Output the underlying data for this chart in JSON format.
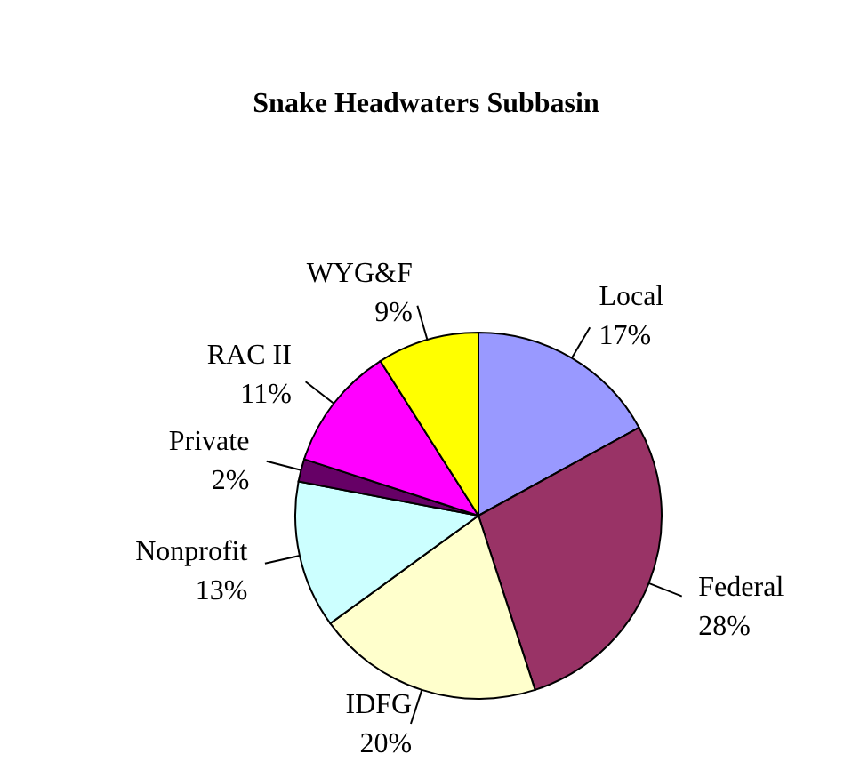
{
  "chart_data": {
    "type": "pie",
    "title": "Snake Headwaters Subbasin",
    "categories": [
      "Local",
      "Federal",
      "IDFG",
      "Nonprofit",
      "Private",
      "RAC II",
      "WYG&F"
    ],
    "values": [
      17,
      28,
      20,
      13,
      2,
      11,
      9
    ],
    "value_labels": [
      "17%",
      "28%",
      "20%",
      "13%",
      "2%",
      "11%",
      "9%"
    ],
    "colors": [
      "#9999ff",
      "#993366",
      "#ffffcc",
      "#ccffff",
      "#660066",
      "#ff00ff",
      "#ffff00"
    ],
    "legend": false
  }
}
